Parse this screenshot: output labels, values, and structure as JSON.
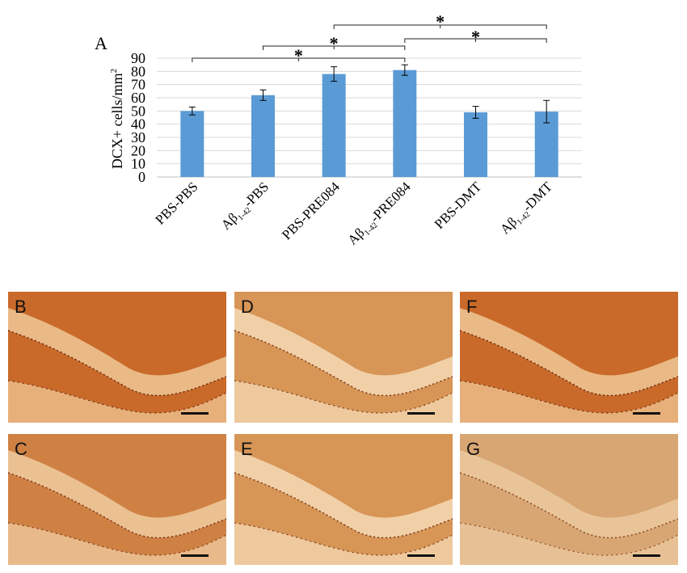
{
  "chart_data": {
    "type": "bar",
    "panel_label": "A",
    "ylabel": "DCX+ cells/mm",
    "ylabel_superscript": "2",
    "ylim": [
      0,
      90
    ],
    "yticks": [
      0,
      10,
      20,
      30,
      40,
      50,
      60,
      70,
      80,
      90
    ],
    "grid": true,
    "categories": [
      {
        "pre": "PBS-PBS",
        "sub": "",
        "post": ""
      },
      {
        "pre": "Aβ",
        "sub": "1-42",
        "post": "-PBS"
      },
      {
        "pre": "PBS-PRE084",
        "sub": "",
        "post": ""
      },
      {
        "pre": "Aβ",
        "sub": "1-42",
        "post": "-PRE084"
      },
      {
        "pre": "PBS-DMT",
        "sub": "",
        "post": ""
      },
      {
        "pre": "Aβ",
        "sub": "1-42",
        "post": "-DMT"
      }
    ],
    "values": [
      50,
      62,
      78,
      81,
      49,
      49.5
    ],
    "errors": [
      3,
      4,
      5.5,
      4,
      4.5,
      8.5
    ],
    "bar_color": "#5b9bd5",
    "significance": [
      {
        "from": 0,
        "to": 3,
        "label": "*"
      },
      {
        "from": 1,
        "to": 3,
        "label": "*"
      },
      {
        "from": 2,
        "to": 5,
        "label": "*"
      },
      {
        "from": 3,
        "to": 5,
        "label": "*"
      }
    ]
  },
  "micrographs": [
    {
      "label": "B",
      "tone": "dark"
    },
    {
      "label": "D",
      "tone": "light"
    },
    {
      "label": "F",
      "tone": "dark"
    },
    {
      "label": "C",
      "tone": "medium"
    },
    {
      "label": "E",
      "tone": "light"
    },
    {
      "label": "G",
      "tone": "pale"
    }
  ]
}
